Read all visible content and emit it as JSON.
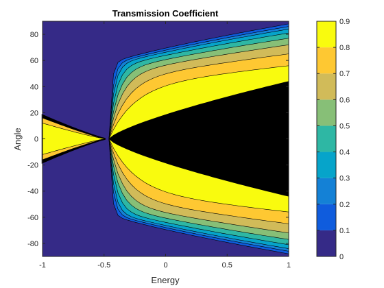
{
  "chart_data": {
    "type": "heatmap",
    "subtype": "filled-contour",
    "title": "Transmission Coefficient",
    "xlabel": "Energy",
    "ylabel": "Angle",
    "xlim": [
      -1,
      1
    ],
    "ylim": [
      -90,
      90
    ],
    "xticks": [
      -1,
      -0.5,
      0,
      0.5,
      1
    ],
    "xtick_labels": [
      "-1",
      "-0.5",
      "0",
      "0.5",
      "1"
    ],
    "yticks": [
      -80,
      -60,
      -40,
      -20,
      0,
      20,
      40,
      60,
      80
    ],
    "ytick_labels": [
      "-80",
      "-60",
      "-40",
      "-20",
      "0",
      "20",
      "40",
      "60",
      "80"
    ],
    "colorbar": {
      "limits": [
        0,
        0.9
      ],
      "ticks": [
        0,
        0.1,
        0.2,
        0.3,
        0.4,
        0.5,
        0.6,
        0.7,
        0.8,
        0.9
      ],
      "tick_labels": [
        "0",
        "0.1",
        "0.2",
        "0.3",
        "0.4",
        "0.5",
        "0.6",
        "0.7",
        "0.8",
        "0.9"
      ],
      "colormap": "parula"
    },
    "contour_levels": [
      0.1,
      0.2,
      0.3,
      0.4,
      0.5,
      0.6,
      0.7,
      0.8,
      0.9
    ],
    "colors": {
      "band_0": "#352a87",
      "band_1": "#0f5cdd",
      "band_2": "#1481d6",
      "band_3": "#06a4ca",
      "band_4": "#2eb7a4",
      "band_5": "#87bf77",
      "band_6": "#d1bb59",
      "band_7": "#fec832",
      "band_8": "#f9fb0e"
    },
    "regions": [
      {
        "energy_range": [
          0,
          1
        ],
        "description": "contour_bands",
        "angle_at_energy_1": {
          "0.9": 44,
          "0.8": 56,
          "0.7": 65,
          "0.6": 72,
          "0.5": 77,
          "0.4": 81,
          "0.3": 84,
          "0.2": 86,
          "0.1": 88
        }
      },
      {
        "energy_range": [
          -1,
          -0.5
        ],
        "angle_at_energy_minus_1": {
          "0.9": 12,
          "0.1": 18
        }
      }
    ]
  }
}
